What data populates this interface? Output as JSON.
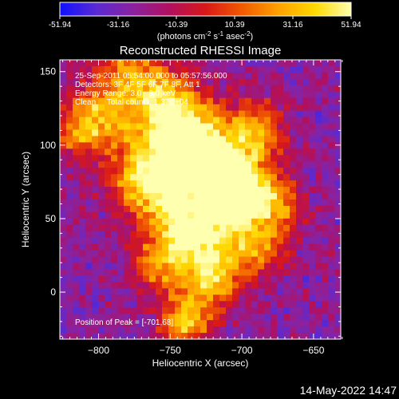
{
  "colorbar": {
    "tick_labels": [
      "-51.94",
      "-31.16",
      "-10.39",
      "10.39",
      "31.16",
      "51.94"
    ],
    "range": [
      -51.94,
      51.94
    ],
    "units_pre": "(photons cm",
    "units_sup1": "-2",
    "units_mid1": " s",
    "units_sup2": "-1",
    "units_mid2": " asec",
    "units_sup3": "-2",
    "units_post": ")",
    "colors": [
      "#1010ff",
      "#5a2ad2",
      "#8a22a0",
      "#b01060",
      "#d81818",
      "#f05a00",
      "#ffa000",
      "#ffd800",
      "#ffffb0"
    ]
  },
  "chart_data": {
    "type": "heatmap",
    "title": "Reconstructed RHESSI Image",
    "xlabel": "Heliocentric X (arcsec)",
    "ylabel": "Heliocentric Y (arcsec)",
    "xlim": [
      -827,
      -631
    ],
    "ylim": [
      -32,
      158
    ],
    "x_ticks": [
      -800,
      -750,
      -700,
      -650
    ],
    "y_ticks": [
      0,
      50,
      100,
      150
    ],
    "x_tick_labels": [
      "−800",
      "−750",
      "−700",
      "−650"
    ],
    "y_tick_labels": [
      "0",
      "50",
      "100",
      "150"
    ],
    "annotations": [
      "25-Sep-2011 05:54:00.000 to 05:57:56.000",
      "Detectors: 3F 4F 5F 6F 7F 8F, Att 1",
      "Energy Range: 3.0 - 6.0 keV",
      "Clean     Total counts: 1.37E+04"
    ],
    "peak_label": "Position of Peak = [-701,68]",
    "peak": [
      -701,
      68
    ]
  },
  "footer": {
    "timestamp": "14-May-2022 14:47"
  }
}
